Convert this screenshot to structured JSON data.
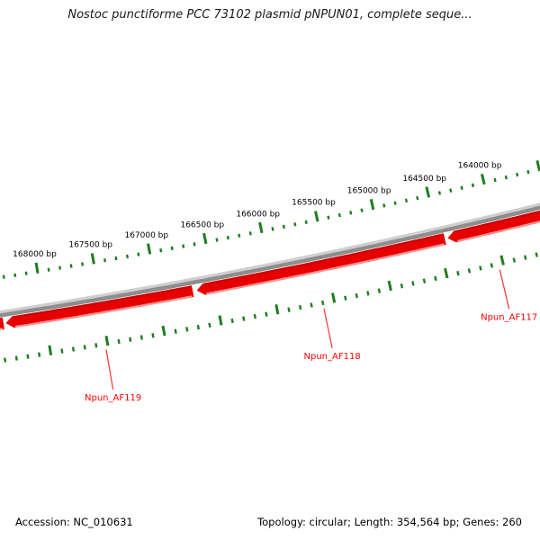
{
  "title": "Nostoc punctiforme PCC 73102 plasmid pNPUN01, complete seque...",
  "status_bar": {
    "accession": "Accession: NC_010631",
    "summary": "Topology: circular; Length: 354,564 bp; Genes: 260"
  },
  "map": {
    "type": "circular-genome-map",
    "unit": "bp",
    "ruler": {
      "major_tick_bp": 500,
      "minor_tick_bp": 100,
      "visible_bp_min": 163500,
      "visible_bp_max": 168400,
      "labeled_ticks": [
        {
          "bp": 168000,
          "label": "168000 bp"
        },
        {
          "bp": 167500,
          "label": "167500 bp"
        },
        {
          "bp": 167000,
          "label": "167000 bp"
        },
        {
          "bp": 166500,
          "label": "166500 bp"
        },
        {
          "bp": 166000,
          "label": "166000 bp"
        },
        {
          "bp": 165500,
          "label": "165500 bp"
        },
        {
          "bp": 165000,
          "label": "165000 bp"
        },
        {
          "bp": 164500,
          "label": "164500 bp"
        },
        {
          "bp": 164000,
          "label": "164000 bp"
        }
      ]
    },
    "genes": [
      {
        "label": "Npun_AF119",
        "bp_from": 166690,
        "bp_to": 168345,
        "tip": "left",
        "callout_bp": 167520
      },
      {
        "label": "Npun_AF118",
        "bp_from": 164445,
        "bp_to": 166655,
        "tip": "left",
        "callout_bp": 165600
      },
      {
        "label": "Npun_AF117",
        "bp_from": 163250,
        "bp_to": 164420,
        "tip": "left",
        "callout_bp": 164040
      },
      {
        "label": "",
        "bp_from": 168365,
        "bp_to": 168600,
        "tip": "none",
        "callout_bp": null
      }
    ],
    "colors": {
      "feature": "#e60000",
      "feature_dark": "#bf0000",
      "feature_highlight": "#ff9696",
      "backbone": "#8d8d8d",
      "backbone_light": "#cfcfcf",
      "tick": "#1e7d1e",
      "gene_label": "#ff0000",
      "callout_line": "#ff3333",
      "ruler_label": "#000000"
    }
  }
}
